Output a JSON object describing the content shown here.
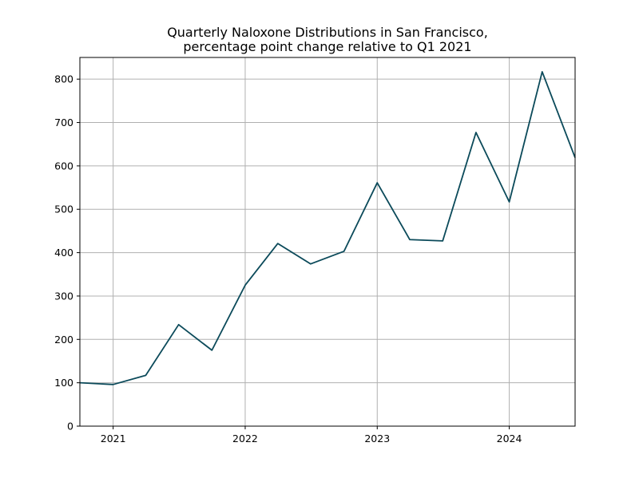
{
  "chart_data": {
    "type": "line",
    "title_lines": [
      "Quarterly Naloxone Distributions in San Francisco,",
      "percentage point change relative to Q1 2021"
    ],
    "xlabel": "",
    "ylabel": "",
    "x_ticks": [
      "2021",
      "2022",
      "2023",
      "2024"
    ],
    "y_ticks": [
      0,
      100,
      200,
      300,
      400,
      500,
      600,
      700,
      800
    ],
    "xlim": [
      "2020-10-01",
      "2024-07-01"
    ],
    "ylim": [
      0,
      850
    ],
    "grid": true,
    "legend": "none",
    "series": [
      {
        "color": "#0b4a5a",
        "points": [
          {
            "x": "2020-10-01",
            "y": 100
          },
          {
            "x": "2021-01-01",
            "y": 96
          },
          {
            "x": "2021-04-01",
            "y": 117
          },
          {
            "x": "2021-07-01",
            "y": 234
          },
          {
            "x": "2021-10-01",
            "y": 175
          },
          {
            "x": "2022-01-01",
            "y": 325
          },
          {
            "x": "2022-04-01",
            "y": 421
          },
          {
            "x": "2022-07-01",
            "y": 374
          },
          {
            "x": "2022-10-01",
            "y": 403
          },
          {
            "x": "2023-01-01",
            "y": 561
          },
          {
            "x": "2023-04-01",
            "y": 430
          },
          {
            "x": "2023-07-01",
            "y": 427
          },
          {
            "x": "2023-10-01",
            "y": 677
          },
          {
            "x": "2024-01-01",
            "y": 517
          },
          {
            "x": "2024-04-01",
            "y": 817
          },
          {
            "x": "2024-07-01",
            "y": 619
          }
        ]
      }
    ]
  }
}
